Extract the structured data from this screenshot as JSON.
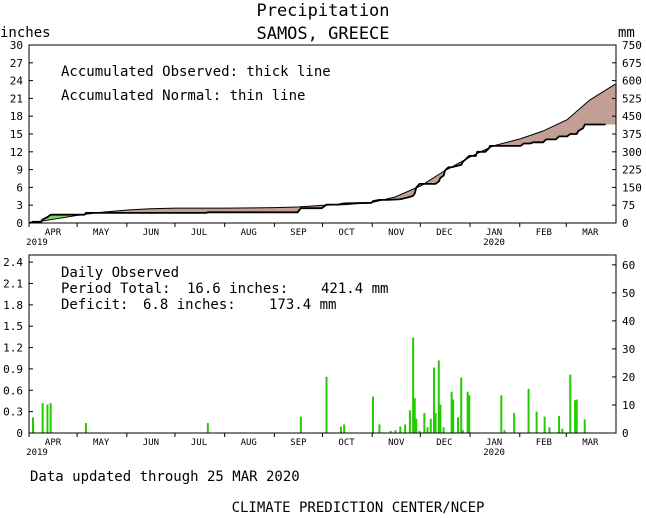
{
  "chart_data": [
    {
      "type": "area",
      "title": "Precipitation",
      "subtitle": "SAMOS, GREECE",
      "ylabel_left": "inches",
      "ylabel_right": "mm",
      "annotations": [
        "Accumulated Observed: thick line",
        "Accumulated Normal: thin line"
      ],
      "y_ticks_left": [
        "0",
        "3",
        "6",
        "9",
        "12",
        "15",
        "18",
        "21",
        "24",
        "27",
        "30"
      ],
      "y_ticks_right": [
        "0",
        "75",
        "150",
        "225",
        "300",
        "375",
        "450",
        "525",
        "600",
        "675",
        "750"
      ],
      "ylim": [
        0,
        30
      ],
      "x_months": [
        "APR",
        "MAY",
        "JUN",
        "JUL",
        "AUG",
        "SEP",
        "OCT",
        "NOV",
        "DEC",
        "JAN",
        "FEB",
        "MAR"
      ],
      "x_years": [
        "2019",
        "2020"
      ],
      "x_start": "2019-04-01",
      "x_end": "2020-03-31",
      "series": [
        {
          "name": "Accumulated Observed",
          "points": [
            [
              "2019-04-01",
              0.0
            ],
            [
              "2019-04-03",
              0.2
            ],
            [
              "2019-04-08",
              0.2
            ],
            [
              "2019-04-09",
              0.6
            ],
            [
              "2019-04-12",
              1.0
            ],
            [
              "2019-04-14",
              1.4
            ],
            [
              "2019-05-05",
              1.4
            ],
            [
              "2019-05-06",
              1.7
            ],
            [
              "2019-06-01",
              1.7
            ],
            [
              "2019-07-20",
              1.7
            ],
            [
              "2019-07-21",
              1.8
            ],
            [
              "2019-09-15",
              1.8
            ],
            [
              "2019-09-17",
              2.5
            ],
            [
              "2019-09-30",
              2.5
            ],
            [
              "2019-10-03",
              3.1
            ],
            [
              "2019-10-10",
              3.1
            ],
            [
              "2019-10-12",
              3.2
            ],
            [
              "2019-10-14",
              3.3
            ],
            [
              "2019-10-31",
              3.4
            ],
            [
              "2019-11-01",
              3.7
            ],
            [
              "2019-11-05",
              3.9
            ],
            [
              "2019-11-10",
              3.9
            ],
            [
              "2019-11-18",
              4.0
            ],
            [
              "2019-11-24",
              4.4
            ],
            [
              "2019-11-26",
              4.6
            ],
            [
              "2019-11-27",
              5.0
            ],
            [
              "2019-11-28",
              6.0
            ],
            [
              "2019-11-30",
              6.6
            ],
            [
              "2019-12-10",
              6.6
            ],
            [
              "2019-12-12",
              7.0
            ],
            [
              "2019-12-13",
              7.6
            ],
            [
              "2019-12-15",
              8.0
            ],
            [
              "2019-12-16",
              8.9
            ],
            [
              "2019-12-18",
              9.4
            ],
            [
              "2019-12-20",
              9.4
            ],
            [
              "2019-12-26",
              9.8
            ],
            [
              "2019-12-27",
              10.3
            ],
            [
              "2019-12-29",
              10.8
            ],
            [
              "2019-12-31",
              11.3
            ],
            [
              "2020-01-04",
              11.3
            ],
            [
              "2020-01-05",
              12.0
            ],
            [
              "2020-01-10",
              12.0
            ],
            [
              "2020-01-12",
              12.5
            ],
            [
              "2020-01-13",
              13.0
            ],
            [
              "2020-02-01",
              13.0
            ],
            [
              "2020-02-03",
              13.4
            ],
            [
              "2020-02-07",
              13.4
            ],
            [
              "2020-02-09",
              13.6
            ],
            [
              "2020-02-15",
              13.6
            ],
            [
              "2020-02-17",
              14.1
            ],
            [
              "2020-02-23",
              14.1
            ],
            [
              "2020-02-25",
              14.6
            ],
            [
              "2020-03-01",
              14.6
            ],
            [
              "2020-03-03",
              15.0
            ],
            [
              "2020-03-07",
              15.0
            ],
            [
              "2020-03-08",
              15.5
            ],
            [
              "2020-03-11",
              16.0
            ],
            [
              "2020-03-12",
              16.6
            ],
            [
              "2020-03-25",
              16.6
            ]
          ]
        },
        {
          "name": "Accumulated Normal",
          "points": [
            [
              "2019-04-01",
              0.0
            ],
            [
              "2019-04-15",
              0.6
            ],
            [
              "2019-05-01",
              1.3
            ],
            [
              "2019-05-15",
              1.8
            ],
            [
              "2019-06-01",
              2.2
            ],
            [
              "2019-06-15",
              2.4
            ],
            [
              "2019-07-01",
              2.5
            ],
            [
              "2019-08-01",
              2.5
            ],
            [
              "2019-09-01",
              2.6
            ],
            [
              "2019-09-15",
              2.7
            ],
            [
              "2019-10-01",
              3.0
            ],
            [
              "2019-10-15",
              3.1
            ],
            [
              "2019-11-01",
              3.5
            ],
            [
              "2019-11-15",
              4.4
            ],
            [
              "2019-12-01",
              6.3
            ],
            [
              "2019-12-15",
              8.7
            ],
            [
              "2020-01-01",
              11.2
            ],
            [
              "2020-01-15",
              13.0
            ],
            [
              "2020-02-01",
              14.2
            ],
            [
              "2020-02-15",
              15.5
            ],
            [
              "2020-03-01",
              17.4
            ],
            [
              "2020-03-15",
              20.7
            ],
            [
              "2020-03-31",
              23.4
            ]
          ]
        }
      ]
    },
    {
      "type": "bar",
      "annotations": [
        "Daily Observed"
      ],
      "period_total_label": "Period Total:",
      "period_total_in": "16.6 inches:",
      "period_total_mm": "421.4 mm",
      "deficit_label": "Deficit:",
      "deficit_in": "6.8 inches:",
      "deficit_mm": "173.4 mm",
      "y_ticks_left": [
        "0",
        "0.3",
        "0.6",
        "0.9",
        "1.2",
        "1.5",
        "1.8",
        "2.1",
        "2.4"
      ],
      "y_ticks_right": [
        "0",
        "10",
        "20",
        "30",
        "40",
        "50",
        "60"
      ],
      "ylim": [
        0,
        2.5
      ],
      "x_months": [
        "APR",
        "MAY",
        "JUN",
        "JUL",
        "AUG",
        "SEP",
        "OCT",
        "NOV",
        "DEC",
        "JAN",
        "FEB",
        "MAR"
      ],
      "x_years": [
        "2019",
        "2020"
      ],
      "series": [
        {
          "name": "Daily Observed",
          "points": [
            [
              "2019-04-03",
              0.22
            ],
            [
              "2019-04-09",
              0.42
            ],
            [
              "2019-04-12",
              0.4
            ],
            [
              "2019-04-14",
              0.42
            ],
            [
              "2019-05-06",
              0.14
            ],
            [
              "2019-07-21",
              0.14
            ],
            [
              "2019-09-17",
              0.23
            ],
            [
              "2019-10-03",
              0.79
            ],
            [
              "2019-10-12",
              0.09
            ],
            [
              "2019-10-14",
              0.12
            ],
            [
              "2019-11-01",
              0.51
            ],
            [
              "2019-11-05",
              0.12
            ],
            [
              "2019-11-12",
              0.03
            ],
            [
              "2019-11-15",
              0.04
            ],
            [
              "2019-11-18",
              0.09
            ],
            [
              "2019-11-21",
              0.12
            ],
            [
              "2019-11-24",
              0.32
            ],
            [
              "2019-11-26",
              1.34
            ],
            [
              "2019-11-27",
              0.49
            ],
            [
              "2019-11-28",
              0.2
            ],
            [
              "2019-11-30",
              0.03
            ],
            [
              "2019-12-03",
              0.28
            ],
            [
              "2019-12-05",
              0.08
            ],
            [
              "2019-12-07",
              0.2
            ],
            [
              "2019-12-09",
              0.92
            ],
            [
              "2019-12-10",
              0.28
            ],
            [
              "2019-12-12",
              1.02
            ],
            [
              "2019-12-13",
              0.4
            ],
            [
              "2019-12-15",
              0.08
            ],
            [
              "2019-12-20",
              0.58
            ],
            [
              "2019-12-21",
              0.47
            ],
            [
              "2019-12-24",
              0.22
            ],
            [
              "2019-12-26",
              0.78
            ],
            [
              "2019-12-27",
              0.04
            ],
            [
              "2019-12-30",
              0.58
            ],
            [
              "2019-12-31",
              0.53
            ],
            [
              "2020-01-20",
              0.53
            ],
            [
              "2020-01-22",
              0.04
            ],
            [
              "2020-01-28",
              0.28
            ],
            [
              "2020-02-06",
              0.62
            ],
            [
              "2020-02-11",
              0.3
            ],
            [
              "2020-02-16",
              0.23
            ],
            [
              "2020-02-19",
              0.08
            ],
            [
              "2020-02-25",
              0.24
            ],
            [
              "2020-02-27",
              0.06
            ],
            [
              "2020-03-03",
              0.82
            ],
            [
              "2020-03-06",
              0.46
            ],
            [
              "2020-03-07",
              0.47
            ],
            [
              "2020-03-12",
              0.19
            ]
          ]
        }
      ]
    }
  ],
  "footer": {
    "updated": "Data updated through 25 MAR 2020",
    "credit": "CLIMATE PREDICTION CENTER/NCEP"
  },
  "colors": {
    "fill_deficit": "#c29e94",
    "fill_surplus": "#7fd45f",
    "bar": "#22cc00",
    "axis": "#000000"
  }
}
